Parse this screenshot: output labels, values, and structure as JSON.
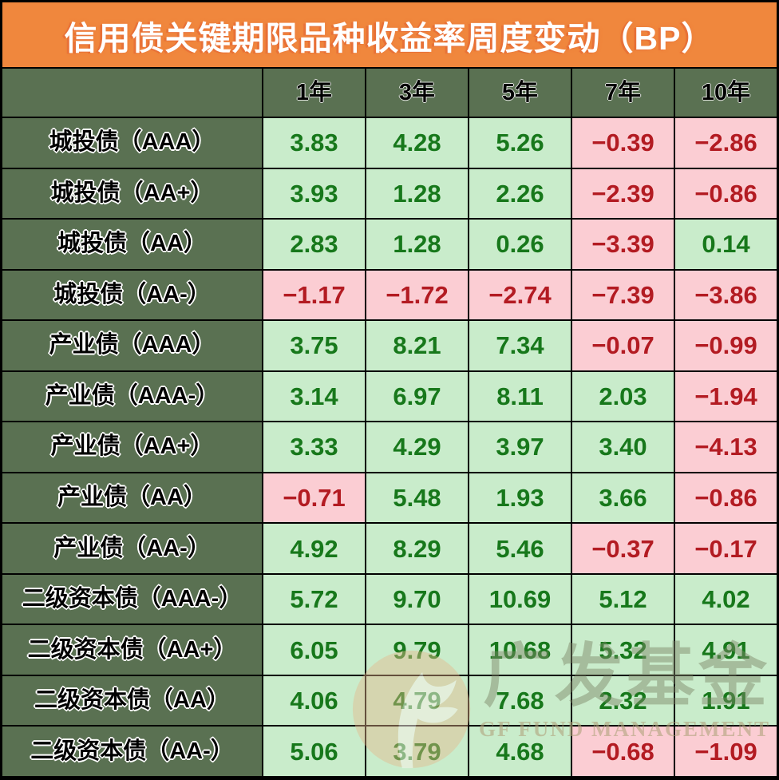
{
  "chart_data": {
    "type": "table",
    "title": "信用债关键期限品种收益率周度变动（BP）",
    "unit": "BP",
    "columns": [
      "",
      "1年",
      "3年",
      "5年",
      "7年",
      "10年"
    ],
    "rows": [
      {
        "label": "城投债（AAA）",
        "values": [
          "3.83",
          "4.28",
          "5.26",
          "−0.39",
          "−2.86"
        ]
      },
      {
        "label": "城投债（AA+）",
        "values": [
          "3.93",
          "1.28",
          "2.26",
          "−2.39",
          "−0.86"
        ]
      },
      {
        "label": "城投债（AA）",
        "values": [
          "2.83",
          "1.28",
          "0.26",
          "−3.39",
          "0.14"
        ]
      },
      {
        "label": "城投债（AA-）",
        "values": [
          "−1.17",
          "−1.72",
          "−2.74",
          "−7.39",
          "−3.86"
        ]
      },
      {
        "label": "产业债（AAA）",
        "values": [
          "3.75",
          "8.21",
          "7.34",
          "−0.07",
          "−0.99"
        ]
      },
      {
        "label": "产业债（AAA-）",
        "values": [
          "3.14",
          "6.97",
          "8.11",
          "2.03",
          "−1.94"
        ]
      },
      {
        "label": "产业债（AA+）",
        "values": [
          "3.33",
          "4.29",
          "3.97",
          "3.40",
          "−4.13"
        ]
      },
      {
        "label": "产业债（AA）",
        "values": [
          "−0.71",
          "5.48",
          "1.93",
          "3.66",
          "−0.86"
        ]
      },
      {
        "label": "产业债（AA-）",
        "values": [
          "4.92",
          "8.29",
          "5.46",
          "−0.37",
          "−0.17"
        ]
      },
      {
        "label": "二级资本债（AAA-）",
        "values": [
          "5.72",
          "9.70",
          "10.69",
          "5.12",
          "4.02"
        ]
      },
      {
        "label": "二级资本债（AA+）",
        "values": [
          "6.05",
          "9.79",
          "10.68",
          "5.32",
          "4.91"
        ]
      },
      {
        "label": "二级资本债（AA）",
        "values": [
          "4.06",
          "4.79",
          "7.68",
          "2.32",
          "1.91"
        ]
      },
      {
        "label": "二级资本债（AA-）",
        "values": [
          "5.06",
          "3.79",
          "4.68",
          "−0.68",
          "−1.09"
        ]
      }
    ],
    "layout": {
      "legend": "none",
      "grid": "black 2px cell borders",
      "positive_style": "light green cell, dark green text",
      "negative_style": "pink cell, dark red text"
    }
  },
  "watermark": {
    "cn": "广发基金",
    "en": "GF FUND MANAGEMENT",
    "logo": "gf-leaf-logo"
  },
  "colors": {
    "banner_bg": "#F0873D",
    "banner_text": "#FFFFFF",
    "header_bg": "#5A7152",
    "header_text": "#000000",
    "positive_bg": "#C9ECCB",
    "positive_text": "#17781B",
    "negative_bg": "#FBCDD3",
    "negative_text": "#B31B22",
    "border": "#000000"
  }
}
